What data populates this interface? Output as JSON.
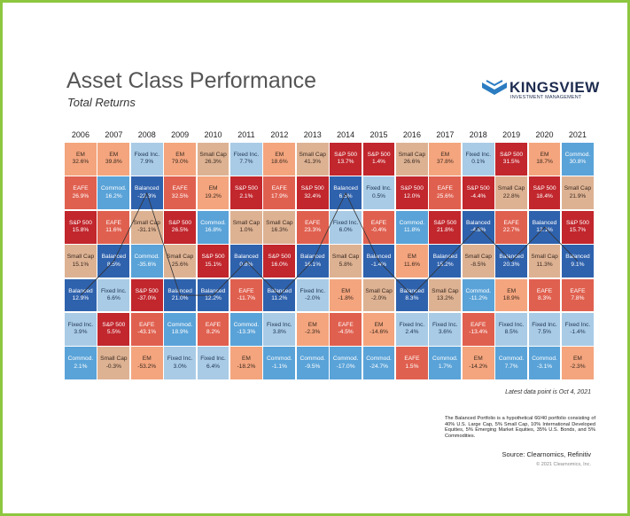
{
  "header": {
    "title": "Asset Class Performance",
    "subtitle": "Total Returns"
  },
  "logo": {
    "name": "KINGSVIEW",
    "tagline": "INVESTMENT MANAGEMENT"
  },
  "asset_styles": [
    {
      "name": "EM",
      "fill": "#f4a57e",
      "text": "#3a2a20"
    },
    {
      "name": "EAFE",
      "fill": "#e0604f",
      "text": "#ffffff"
    },
    {
      "name": "S&P 500",
      "fill": "#c1272d",
      "text": "#ffffff"
    },
    {
      "name": "Small Cap",
      "fill": "#ddb293",
      "text": "#3a2a20"
    },
    {
      "name": "Balanced",
      "fill": "#2f62ad",
      "text": "#ffffff"
    },
    {
      "name": "Fixed Inc.",
      "fill": "#a9cbe6",
      "text": "#1f3550"
    },
    {
      "name": "Commod.",
      "fill": "#5aa3d8",
      "text": "#ffffff"
    }
  ],
  "balanced_name": "Balanced",
  "table": {
    "columns": [
      {
        "year": "2006",
        "cells": [
          {
            "label": "EM",
            "value": "32.6%"
          },
          {
            "label": "EAFE",
            "value": "26.9%"
          },
          {
            "label": "S&P 500",
            "value": "15.8%"
          },
          {
            "label": "Small Cap",
            "value": "15.1%"
          },
          {
            "label": "Balanced",
            "value": "12.9%"
          },
          {
            "label": "Fixed Inc.",
            "value": "3.9%"
          },
          {
            "label": "Commod.",
            "value": "2.1%"
          }
        ]
      },
      {
        "year": "2007",
        "cells": [
          {
            "label": "EM",
            "value": "39.8%"
          },
          {
            "label": "Commod.",
            "value": "16.2%"
          },
          {
            "label": "EAFE",
            "value": "11.6%"
          },
          {
            "label": "Balanced",
            "value": "8.5%"
          },
          {
            "label": "Fixed Inc.",
            "value": "6.6%"
          },
          {
            "label": "S&P 500",
            "value": "5.5%"
          },
          {
            "label": "Small Cap",
            "value": "-0.3%"
          }
        ]
      },
      {
        "year": "2008",
        "cells": [
          {
            "label": "Fixed Inc.",
            "value": "7.9%"
          },
          {
            "label": "Balanced",
            "value": "-22.3%"
          },
          {
            "label": "Small Cap",
            "value": "-31.1%"
          },
          {
            "label": "Commod.",
            "value": "-35.6%"
          },
          {
            "label": "S&P 500",
            "value": "-37.0%"
          },
          {
            "label": "EAFE",
            "value": "-43.1%"
          },
          {
            "label": "EM",
            "value": "-53.2%"
          }
        ]
      },
      {
        "year": "2009",
        "cells": [
          {
            "label": "EM",
            "value": "79.0%"
          },
          {
            "label": "EAFE",
            "value": "32.5%"
          },
          {
            "label": "S&P 500",
            "value": "26.5%"
          },
          {
            "label": "Small Cap",
            "value": "25.6%"
          },
          {
            "label": "Balanced",
            "value": "21.0%"
          },
          {
            "label": "Commod.",
            "value": "18.9%"
          },
          {
            "label": "Fixed Inc.",
            "value": "3.0%"
          }
        ]
      },
      {
        "year": "2010",
        "cells": [
          {
            "label": "Small Cap",
            "value": "26.3%"
          },
          {
            "label": "EM",
            "value": "19.2%"
          },
          {
            "label": "Commod.",
            "value": "16.8%"
          },
          {
            "label": "S&P 500",
            "value": "15.1%"
          },
          {
            "label": "Balanced",
            "value": "12.2%"
          },
          {
            "label": "EAFE",
            "value": "8.2%"
          },
          {
            "label": "Fixed Inc.",
            "value": "6.4%"
          }
        ]
      },
      {
        "year": "2011",
        "cells": [
          {
            "label": "Fixed Inc.",
            "value": "7.7%"
          },
          {
            "label": "S&P 500",
            "value": "2.1%"
          },
          {
            "label": "Small Cap",
            "value": "1.0%"
          },
          {
            "label": "Balanced",
            "value": "0.8%"
          },
          {
            "label": "EAFE",
            "value": "-11.7%"
          },
          {
            "label": "Commod.",
            "value": "-13.3%"
          },
          {
            "label": "EM",
            "value": "-18.2%"
          }
        ]
      },
      {
        "year": "2012",
        "cells": [
          {
            "label": "EM",
            "value": "18.6%"
          },
          {
            "label": "EAFE",
            "value": "17.9%"
          },
          {
            "label": "Small Cap",
            "value": "16.3%"
          },
          {
            "label": "S&P 500",
            "value": "16.0%"
          },
          {
            "label": "Balanced",
            "value": "11.2%"
          },
          {
            "label": "Fixed Inc.",
            "value": "3.8%"
          },
          {
            "label": "Commod.",
            "value": "-1.1%"
          }
        ]
      },
      {
        "year": "2013",
        "cells": [
          {
            "label": "Small Cap",
            "value": "41.3%"
          },
          {
            "label": "S&P 500",
            "value": "32.4%"
          },
          {
            "label": "EAFE",
            "value": "23.3%"
          },
          {
            "label": "Balanced",
            "value": "16.1%"
          },
          {
            "label": "Fixed Inc.",
            "value": "-2.0%"
          },
          {
            "label": "EM",
            "value": "-2.3%"
          },
          {
            "label": "Commod.",
            "value": "-9.5%"
          }
        ]
      },
      {
        "year": "2014",
        "cells": [
          {
            "label": "S&P 500",
            "value": "13.7%"
          },
          {
            "label": "Balanced",
            "value": "6.5%"
          },
          {
            "label": "Fixed Inc.",
            "value": "6.0%"
          },
          {
            "label": "Small Cap",
            "value": "5.8%"
          },
          {
            "label": "EM",
            "value": "-1.8%"
          },
          {
            "label": "EAFE",
            "value": "-4.5%"
          },
          {
            "label": "Commod.",
            "value": "-17.0%"
          }
        ]
      },
      {
        "year": "2015",
        "cells": [
          {
            "label": "S&P 500",
            "value": "1.4%"
          },
          {
            "label": "Fixed Inc.",
            "value": "0.5%"
          },
          {
            "label": "EAFE",
            "value": "-0.4%"
          },
          {
            "label": "Balanced",
            "value": "-1.4%"
          },
          {
            "label": "Small Cap",
            "value": "-2.0%"
          },
          {
            "label": "EM",
            "value": "-14.6%"
          },
          {
            "label": "Commod.",
            "value": "-24.7%"
          }
        ]
      },
      {
        "year": "2016",
        "cells": [
          {
            "label": "Small Cap",
            "value": "26.6%"
          },
          {
            "label": "S&P 500",
            "value": "12.0%"
          },
          {
            "label": "Commod.",
            "value": "11.8%"
          },
          {
            "label": "EM",
            "value": "11.6%"
          },
          {
            "label": "Balanced",
            "value": "8.3%"
          },
          {
            "label": "Fixed Inc.",
            "value": "2.4%"
          },
          {
            "label": "EAFE",
            "value": "1.5%"
          }
        ]
      },
      {
        "year": "2017",
        "cells": [
          {
            "label": "EM",
            "value": "37.8%"
          },
          {
            "label": "EAFE",
            "value": "25.6%"
          },
          {
            "label": "S&P 500",
            "value": "21.8%"
          },
          {
            "label": "Balanced",
            "value": "15.2%"
          },
          {
            "label": "Small Cap",
            "value": "13.2%"
          },
          {
            "label": "Fixed Inc.",
            "value": "3.6%"
          },
          {
            "label": "Commod.",
            "value": "1.7%"
          }
        ]
      },
      {
        "year": "2018",
        "cells": [
          {
            "label": "Fixed Inc.",
            "value": "0.1%"
          },
          {
            "label": "S&P 500",
            "value": "-4.4%"
          },
          {
            "label": "Balanced",
            "value": "-4.8%"
          },
          {
            "label": "Small Cap",
            "value": "-8.5%"
          },
          {
            "label": "Commod.",
            "value": "-11.2%"
          },
          {
            "label": "EAFE",
            "value": "-13.4%"
          },
          {
            "label": "EM",
            "value": "-14.2%"
          }
        ]
      },
      {
        "year": "2019",
        "cells": [
          {
            "label": "S&P 500",
            "value": "31.5%"
          },
          {
            "label": "Small Cap",
            "value": "22.8%"
          },
          {
            "label": "EAFE",
            "value": "22.7%"
          },
          {
            "label": "Balanced",
            "value": "20.3%"
          },
          {
            "label": "EM",
            "value": "18.9%"
          },
          {
            "label": "Fixed Inc.",
            "value": "8.5%"
          },
          {
            "label": "Commod.",
            "value": "7.7%"
          }
        ]
      },
      {
        "year": "2020",
        "cells": [
          {
            "label": "EM",
            "value": "18.7%"
          },
          {
            "label": "S&P 500",
            "value": "18.4%"
          },
          {
            "label": "Balanced",
            "value": "12.1%"
          },
          {
            "label": "Small Cap",
            "value": "11.3%"
          },
          {
            "label": "EAFE",
            "value": "8.3%"
          },
          {
            "label": "Fixed Inc.",
            "value": "7.5%"
          },
          {
            "label": "Commod.",
            "value": "-3.1%"
          }
        ]
      },
      {
        "year": "2021",
        "cells": [
          {
            "label": "Commod.",
            "value": "30.8%"
          },
          {
            "label": "Small Cap",
            "value": "21.9%"
          },
          {
            "label": "S&P 500",
            "value": "15.7%"
          },
          {
            "label": "Balanced",
            "value": "9.1%"
          },
          {
            "label": "EAFE",
            "value": "7.8%"
          },
          {
            "label": "Fixed Inc.",
            "value": "-1.4%"
          },
          {
            "label": "EM",
            "value": "-2.3%"
          }
        ]
      }
    ]
  },
  "notes": {
    "latest": "Latest data point is Oct 4, 2021",
    "footnote": "The Balanced Portfolio is a hypothetical 60/40 portfolio consisting of 40% U.S. Large Cap, 5% Small Cap, 10% International Developed Equities, 5% Emerging Market Equities, 35% U.S. Bonds, and 5% Commodities.",
    "source": "Source: Clearnomics, Refinitiv",
    "copyright": "© 2021 Clearnomics, Inc."
  }
}
